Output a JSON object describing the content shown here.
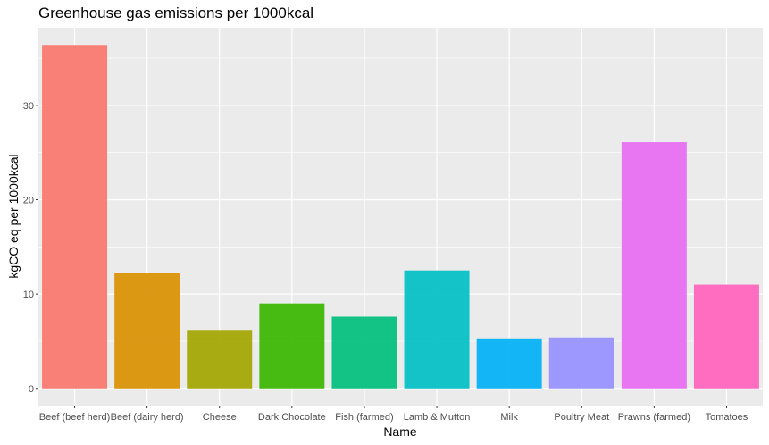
{
  "chart_data": {
    "type": "bar",
    "title": "Greenhouse gas emissions per 1000kcal",
    "xlabel": "Name",
    "ylabel": "kgCO eq per 1000kcal",
    "categories": [
      "Beef (beef herd)",
      "Beef (dairy herd)",
      "Cheese",
      "Dark Chocolate",
      "Fish (farmed)",
      "Lamb & Mutton",
      "Milk",
      "Poultry Meat",
      "Prawns (farmed)",
      "Tomatoes"
    ],
    "values": [
      36.4,
      12.2,
      6.2,
      9.0,
      7.6,
      12.5,
      5.3,
      5.4,
      26.1,
      11.0
    ],
    "colors": [
      "#F8766D",
      "#D89000",
      "#A3A500",
      "#39B600",
      "#00BF7D",
      "#00BFC4",
      "#00B0F6",
      "#9590FF",
      "#E76BF3",
      "#FF62BC"
    ],
    "yticks": [
      0,
      10,
      20,
      30
    ],
    "ylim": [
      -1.82,
      38.22
    ],
    "grid": true,
    "legend": "none",
    "panel_background": "#EBEBEB",
    "bar_opacity": 0.92
  }
}
